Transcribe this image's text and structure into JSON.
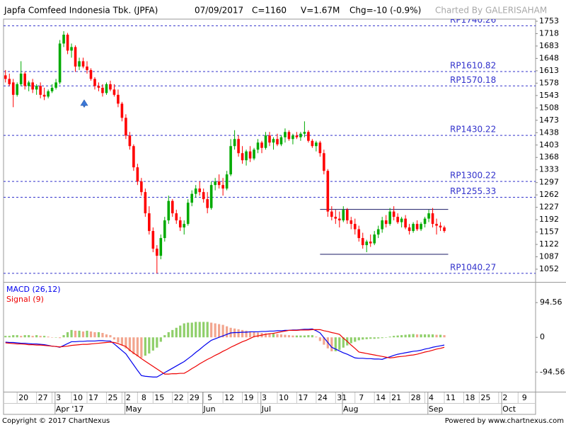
{
  "chart_data": {
    "type": "candlestick",
    "title": "Japfa Comfeed Indonesia Tbk. (JPFA)",
    "info": [
      "07/09/2017",
      "C=1160",
      "V=1.67M",
      "Chg=-10 (-0.9%)"
    ],
    "credit": "Charted By GALERISAHAM",
    "copyright": "Copyright © 2017 ChartNexus",
    "powered_by": "Powered by www.chartnexus.com",
    "categories": [
      null,
      null,
      null,
      null,
      null,
      "20",
      null,
      null,
      null,
      null,
      "27",
      null,
      null,
      null,
      "3",
      null,
      null,
      null,
      null,
      "10",
      null,
      null,
      null,
      "17",
      null,
      null,
      null,
      null,
      "25",
      null,
      null,
      null,
      "2",
      null,
      null,
      null,
      "8",
      null,
      null,
      null,
      "15",
      null,
      null,
      null,
      null,
      "22",
      null,
      null,
      null,
      "29",
      null,
      null,
      null,
      "5",
      null,
      null,
      null,
      null,
      "12",
      null,
      null,
      null,
      null,
      "19",
      null,
      null,
      null,
      "3",
      null,
      null,
      null,
      null,
      "10",
      null,
      null,
      null,
      null,
      "17",
      null,
      null,
      null,
      null,
      "24",
      null,
      null,
      null,
      null,
      "31",
      null,
      null,
      null,
      null,
      "7",
      null,
      null,
      null,
      null,
      "14",
      null,
      null,
      null,
      "21",
      null,
      null,
      null,
      null,
      "28",
      null,
      null,
      null,
      "4",
      null,
      null,
      null,
      null,
      "11",
      null,
      null,
      null,
      null,
      "18",
      null,
      null,
      null,
      "25",
      null,
      null,
      null,
      null,
      "2",
      null,
      null,
      null,
      null,
      "9",
      null,
      null
    ],
    "months": [
      null,
      null,
      null,
      null,
      null,
      null,
      null,
      null,
      null,
      null,
      null,
      null,
      null,
      null,
      "Apr '17",
      null,
      null,
      null,
      null,
      null,
      null,
      null,
      null,
      null,
      null,
      null,
      null,
      null,
      null,
      null,
      null,
      null,
      "May",
      null,
      null,
      null,
      null,
      null,
      null,
      null,
      null,
      null,
      null,
      null,
      null,
      null,
      null,
      null,
      null,
      null,
      null,
      null,
      "Jun",
      null,
      null,
      null,
      null,
      null,
      null,
      null,
      null,
      null,
      null,
      null,
      null,
      null,
      null,
      "Jul",
      null,
      null,
      null,
      null,
      null,
      null,
      null,
      null,
      null,
      null,
      null,
      null,
      null,
      null,
      null,
      null,
      null,
      null,
      null,
      null,
      "Aug",
      null,
      null,
      null,
      null,
      null,
      null,
      null,
      null,
      null,
      null,
      null,
      null,
      null,
      null,
      null,
      null,
      null,
      null,
      null,
      null,
      null,
      "Sep",
      null,
      null,
      null,
      null,
      null,
      null,
      null,
      null,
      null,
      null,
      null,
      null,
      null,
      null,
      null,
      null,
      null,
      null,
      "Oct",
      null,
      null,
      null,
      null,
      null,
      null,
      null
    ],
    "open": [
      1600,
      1590,
      1580,
      1545,
      1575,
      1605,
      1570,
      1580,
      1560,
      1570,
      1545,
      1540,
      1555,
      1565,
      1580,
      1690,
      1715,
      1670,
      1680,
      1625,
      1640,
      1625,
      1615,
      1590,
      1570,
      1565,
      1550,
      1575,
      1560,
      1545,
      1520,
      1480,
      1430,
      1400,
      1340,
      1300,
      1270,
      1210,
      1160,
      1110,
      1090,
      1140,
      1190,
      1245,
      1210,
      1190,
      1170,
      1180,
      1240,
      1265,
      1280,
      1270,
      1250,
      1225,
      1290,
      1300,
      1290,
      1280,
      1320,
      1400,
      1420,
      1380,
      1360,
      1385,
      1365,
      1390,
      1410,
      1395,
      1430,
      1410,
      1420,
      1405,
      1425,
      1440,
      1420,
      1430,
      1425,
      1435,
      1440,
      1415,
      1400,
      1410,
      1380,
      1330,
      1215,
      1200,
      1195,
      1190,
      1220,
      1190,
      1180,
      1165,
      1140,
      1120,
      1130,
      1125,
      1150,
      1165,
      1190,
      1180,
      1215,
      1200,
      1185,
      1195,
      1170,
      1160,
      1180,
      1165,
      1180,
      1195,
      1210,
      1180,
      1175,
      1170,
      null,
      null,
      null,
      null,
      null,
      null,
      null,
      null,
      null,
      null,
      null,
      null,
      null,
      null,
      null,
      null,
      null,
      null,
      null,
      null,
      null,
      null,
      null
    ],
    "high": [
      1615,
      1605,
      1590,
      1580,
      1640,
      1610,
      1585,
      1590,
      1575,
      1580,
      1565,
      1560,
      1575,
      1590,
      1700,
      1725,
      1720,
      1690,
      1685,
      1650,
      1650,
      1640,
      1620,
      1595,
      1580,
      1575,
      1580,
      1585,
      1575,
      1560,
      1525,
      1490,
      1440,
      1405,
      1350,
      1310,
      1280,
      1230,
      1170,
      1120,
      1150,
      1200,
      1260,
      1250,
      1220,
      1200,
      1190,
      1250,
      1275,
      1290,
      1300,
      1280,
      1270,
      1300,
      1310,
      1320,
      1310,
      1330,
      1420,
      1445,
      1430,
      1400,
      1390,
      1400,
      1395,
      1420,
      1415,
      1440,
      1440,
      1425,
      1435,
      1430,
      1450,
      1445,
      1435,
      1440,
      1440,
      1470,
      1445,
      1420,
      1415,
      1415,
      1390,
      1335,
      1230,
      1220,
      1215,
      1230,
      1225,
      1200,
      1195,
      1175,
      1155,
      1135,
      1150,
      1160,
      1175,
      1200,
      1205,
      1225,
      1230,
      1210,
      1200,
      1205,
      1180,
      1185,
      1190,
      1185,
      1200,
      1220,
      1225,
      1195,
      1185,
      1175,
      null,
      null,
      null,
      null,
      null,
      null,
      null,
      null,
      null,
      null,
      null,
      null,
      null,
      null,
      null,
      null,
      null,
      null,
      null,
      null,
      null,
      null,
      null
    ],
    "low": [
      1580,
      1570,
      1510,
      1540,
      1570,
      1560,
      1555,
      1550,
      1545,
      1535,
      1530,
      1535,
      1550,
      1560,
      1575,
      1680,
      1660,
      1650,
      1610,
      1615,
      1620,
      1605,
      1585,
      1560,
      1555,
      1540,
      1545,
      1555,
      1540,
      1510,
      1470,
      1420,
      1390,
      1330,
      1290,
      1260,
      1200,
      1150,
      1100,
      1040,
      1080,
      1130,
      1180,
      1200,
      1180,
      1160,
      1150,
      1175,
      1230,
      1255,
      1260,
      1240,
      1210,
      1220,
      1275,
      1280,
      1260,
      1275,
      1315,
      1390,
      1370,
      1350,
      1345,
      1355,
      1360,
      1380,
      1380,
      1390,
      1400,
      1390,
      1400,
      1400,
      1410,
      1415,
      1405,
      1420,
      1415,
      1425,
      1410,
      1395,
      1385,
      1370,
      1320,
      1200,
      1190,
      1180,
      1170,
      1185,
      1180,
      1165,
      1150,
      1130,
      1110,
      1100,
      1115,
      1120,
      1140,
      1155,
      1170,
      1175,
      1190,
      1180,
      1170,
      1165,
      1150,
      1155,
      1160,
      1160,
      1170,
      1185,
      1170,
      1150,
      1160,
      1155,
      null,
      null,
      null,
      null,
      null,
      null,
      null,
      null,
      null,
      null,
      null,
      null,
      null,
      null,
      null,
      null,
      null,
      null,
      null,
      null,
      null,
      null,
      null
    ],
    "close": [
      1590,
      1575,
      1545,
      1575,
      1605,
      1570,
      1580,
      1560,
      1570,
      1545,
      1540,
      1555,
      1565,
      1580,
      1690,
      1715,
      1670,
      1680,
      1625,
      1640,
      1625,
      1615,
      1590,
      1570,
      1565,
      1550,
      1575,
      1560,
      1545,
      1520,
      1480,
      1430,
      1400,
      1340,
      1300,
      1270,
      1210,
      1160,
      1110,
      1090,
      1140,
      1190,
      1245,
      1210,
      1190,
      1170,
      1180,
      1240,
      1265,
      1280,
      1270,
      1250,
      1225,
      1290,
      1300,
      1290,
      1280,
      1320,
      1400,
      1420,
      1380,
      1360,
      1385,
      1365,
      1390,
      1410,
      1395,
      1430,
      1410,
      1420,
      1405,
      1425,
      1440,
      1420,
      1430,
      1425,
      1435,
      1440,
      1415,
      1400,
      1410,
      1380,
      1330,
      1215,
      1200,
      1195,
      1190,
      1220,
      1190,
      1180,
      1165,
      1140,
      1120,
      1130,
      1125,
      1150,
      1165,
      1190,
      1180,
      1215,
      1200,
      1185,
      1195,
      1170,
      1160,
      1180,
      1165,
      1180,
      1195,
      1210,
      1180,
      1175,
      1170,
      1160,
      null,
      null,
      null,
      null,
      null,
      null,
      null,
      null,
      null,
      null,
      null,
      null,
      null,
      null,
      null,
      null,
      null,
      null,
      null,
      null,
      null,
      null,
      null
    ],
    "up_color": "#00aa00",
    "down_color": "#ff0000",
    "ylim": [
      1018,
      1759
    ],
    "yticks": [
      1753,
      1718,
      1683,
      1648,
      1613,
      1578,
      1543,
      1508,
      1473,
      1438,
      1403,
      1368,
      1333,
      1297,
      1262,
      1227,
      1192,
      1157,
      1122,
      1087,
      1052
    ],
    "levels": [
      {
        "label": "RP1740.26",
        "value": 1740.26
      },
      {
        "label": "RP1610.82",
        "value": 1610.82
      },
      {
        "label": "RP1570.18",
        "value": 1570.18
      },
      {
        "label": "RP1430.22",
        "value": 1430.22
      },
      {
        "label": "RP1300.22",
        "value": 1300.22
      },
      {
        "label": "RP1255.33",
        "value": 1255.33
      },
      {
        "label": "RP1040.27",
        "value": 1040.27
      }
    ],
    "level_color": "#3333cc",
    "channels": [
      {
        "value": 1221,
        "x": [
          81,
          114
        ]
      },
      {
        "value": 1094,
        "x": [
          81,
          114
        ]
      }
    ],
    "channel_color": "#1a1a66",
    "indicator": {
      "type": "macd",
      "ylim": [
        -148,
        147
      ],
      "yticks": [
        94.56,
        0,
        -94.56
      ],
      "series": [
        {
          "name": "MACD (26,12)",
          "color": "#0000ee",
          "values": [
            -13,
            -14,
            -14,
            -15,
            -16,
            -16,
            -17,
            -18,
            -18,
            -19,
            -20,
            -22,
            -24,
            -25,
            -27,
            -22,
            -17,
            -12,
            -12,
            -11,
            -11,
            -10,
            -10,
            -10,
            -9,
            -9,
            -10,
            -10,
            -18,
            -27,
            -36,
            -45,
            -60,
            -75,
            -90,
            -104,
            -106,
            -107,
            -108,
            -108,
            -102,
            -96,
            -90,
            -84,
            -78,
            -72,
            -66,
            -58,
            -50,
            -41,
            -33,
            -24,
            -16,
            -8,
            -4,
            0,
            4,
            8,
            12,
            13,
            13,
            14,
            14,
            15,
            15,
            15,
            16,
            16,
            17,
            17,
            18,
            18,
            19,
            19,
            20,
            20,
            21,
            22,
            22,
            23,
            18,
            12,
            -1,
            -14,
            -27,
            -32,
            -37,
            -42,
            -46,
            -51,
            -56,
            -57,
            -57,
            -58,
            -58,
            -59,
            -59,
            -60,
            -56,
            -53,
            -49,
            -46,
            -44,
            -42,
            -40,
            -38,
            -37,
            -35,
            -32,
            -30,
            -27,
            -25,
            -23,
            -21,
            null,
            null,
            null,
            null,
            null,
            null,
            null,
            null,
            null,
            null,
            null,
            null,
            null,
            null,
            null,
            null,
            null,
            null,
            null,
            null,
            null,
            null,
            null
          ]
        },
        {
          "name": "Signal (9)",
          "color": "#ee0000",
          "values": [
            -15,
            -16,
            -17,
            -18,
            -18,
            -19,
            -20,
            -20,
            -21,
            -21,
            -22,
            -23,
            -24,
            -25,
            -26,
            -25,
            -24,
            -22,
            -21,
            -20,
            -19,
            -19,
            -18,
            -17,
            -16,
            -15,
            -14,
            -13,
            -14,
            -17,
            -21,
            -25,
            -35,
            -43,
            -50,
            -58,
            -65,
            -72,
            -79,
            -86,
            -93,
            -100,
            -100,
            -99,
            -99,
            -98,
            -98,
            -92,
            -85,
            -79,
            -72,
            -66,
            -60,
            -55,
            -49,
            -44,
            -38,
            -33,
            -27,
            -22,
            -17,
            -12,
            -8,
            -3,
            2,
            4,
            6,
            8,
            10,
            11,
            13,
            15,
            17,
            19,
            19,
            19,
            20,
            20,
            20,
            21,
            21,
            21,
            18,
            16,
            13,
            11,
            8,
            -2,
            -11,
            -21,
            -30,
            -40,
            -42,
            -44,
            -46,
            -48,
            -50,
            -52,
            -54,
            -56,
            -55,
            -53,
            -52,
            -51,
            -49,
            -48,
            -46,
            -43,
            -40,
            -38,
            -35,
            -32,
            -30,
            -27,
            null,
            null,
            null,
            null,
            null,
            null,
            null,
            null,
            null,
            null,
            null,
            null,
            null,
            null,
            null,
            null,
            null,
            null,
            null,
            null,
            null,
            null,
            null
          ]
        }
      ],
      "histogram": {
        "up_color": "#8fcf6a",
        "down_color": "#f2a58e",
        "values": [
          4,
          4,
          6,
          6,
          4,
          6,
          6,
          4,
          6,
          4,
          4,
          2,
          0,
          0,
          -2,
          6,
          14,
          20,
          18,
          18,
          16,
          18,
          16,
          14,
          14,
          12,
          8,
          6,
          -6,
          -14,
          -22,
          -30,
          -38,
          -46,
          -52,
          -56,
          -50,
          -44,
          -36,
          -28,
          -12,
          6,
          14,
          20,
          26,
          32,
          38,
          40,
          40,
          42,
          42,
          42,
          42,
          40,
          38,
          36,
          34,
          30,
          26,
          24,
          22,
          20,
          18,
          16,
          14,
          13,
          12,
          11,
          10,
          10,
          9,
          8,
          7,
          6,
          5,
          5,
          5,
          5,
          6,
          6,
          2,
          -10,
          -20,
          -30,
          -38,
          -38,
          -34,
          -28,
          -22,
          -16,
          -12,
          -8,
          -6,
          -5,
          -4,
          -4,
          -3,
          -2,
          -1,
          2,
          4,
          5,
          6,
          7,
          8,
          9,
          8,
          8,
          8,
          8,
          8,
          7,
          7,
          6,
          null,
          null,
          null,
          null,
          null,
          null,
          null,
          null,
          null,
          null,
          null,
          null,
          null,
          null,
          null,
          null,
          null,
          null,
          null,
          null,
          null,
          null,
          null
        ]
      }
    }
  }
}
